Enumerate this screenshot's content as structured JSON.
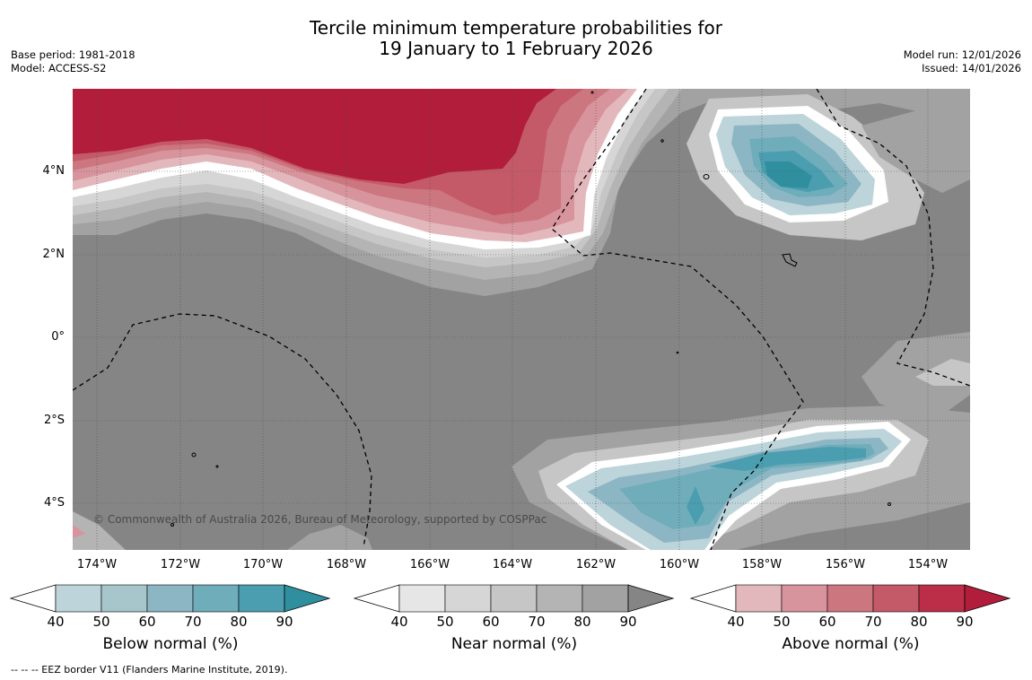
{
  "title": {
    "line1": "Tercile minimum temperature probabilities for",
    "line2": "19 January to 1 February 2026"
  },
  "meta_left": {
    "base_period": "Base period: 1981-2018",
    "model": "Model: ACCESS-S2"
  },
  "meta_right": {
    "model_run": "Model run: 12/01/2026",
    "issued": "Issued: 14/01/2026"
  },
  "copyright": "© Commonwealth of Australia 2026, Bureau of Meteorology, supported by COSPPac",
  "lon_labels": [
    "174°W",
    "172°W",
    "170°W",
    "168°W",
    "166°W",
    "164°W",
    "162°W",
    "160°W",
    "158°W",
    "156°W",
    "154°W"
  ],
  "lat_labels": [
    "4°N",
    "2°N",
    "0°",
    "2°S",
    "4°S"
  ],
  "colorbars": {
    "below": {
      "title": "Below normal (%)",
      "ticks": [
        "40",
        "50",
        "60",
        "70",
        "80",
        "90"
      ],
      "colors": [
        "#bcd4da",
        "#a6c6cc",
        "#8cb6c3",
        "#6fadbb",
        "#4a9eb0",
        "#2f8f9f"
      ]
    },
    "near": {
      "title": "Near normal (%)",
      "ticks": [
        "40",
        "50",
        "60",
        "70",
        "80",
        "90"
      ],
      "colors": [
        "#e6e6e6",
        "#d6d6d6",
        "#c6c6c6",
        "#b4b4b4",
        "#a2a2a2",
        "#858585"
      ]
    },
    "above": {
      "title": "Above normal (%)",
      "ticks": [
        "40",
        "50",
        "60",
        "70",
        "80",
        "90"
      ],
      "colors": [
        "#e3b8bd",
        "#d8949c",
        "#cc7680",
        "#c45a67",
        "#bc2e47",
        "#b11d3a"
      ]
    }
  },
  "footnote": "--  --  -- EEZ border V11 (Flanders Marine Institute, 2019).",
  "map_colors": {
    "base": "#858585",
    "near_80": "#a2a2a2",
    "near_70": "#b4b4b4",
    "near_60": "#c6c6c6",
    "near_50": "#d6d6d6",
    "white": "#ffffff",
    "above_50": "#e3b8bd",
    "above_60": "#d8949c",
    "above_70": "#cc7680",
    "above_80": "#c45a67",
    "above_90": "#b11d3a",
    "below_50": "#bcd4da",
    "below_60": "#8cb6c3",
    "below_70": "#6fadbb",
    "below_80": "#4a9eb0",
    "below_90": "#2f8f9f"
  }
}
